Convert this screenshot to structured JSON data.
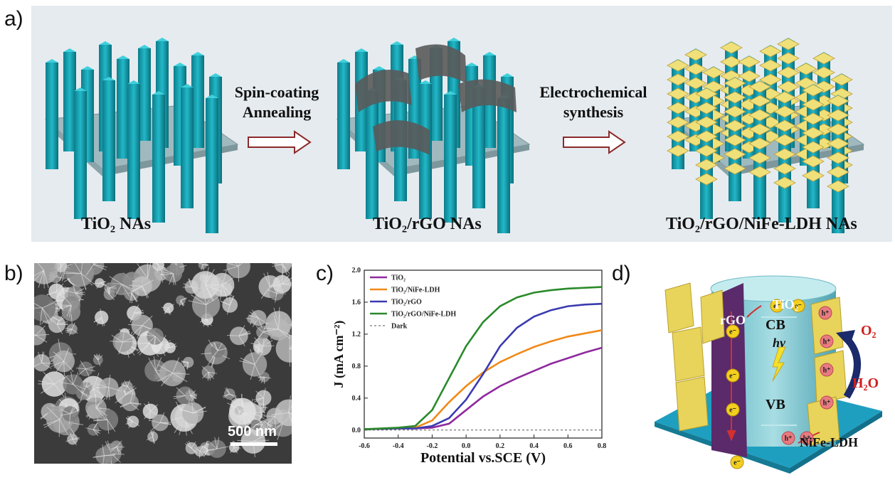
{
  "panel_labels": {
    "a": "a)",
    "b": "b)",
    "c": "c)",
    "d": "d)"
  },
  "panel_a": {
    "stage1_label": "TiO₂ NAs",
    "stage2_label": "TiO₂/rGO NAs",
    "stage3_label": "TiO₂/rGO/NiFe-LDH NAs",
    "step1_line1": "Spin-coating",
    "step1_line2": "Annealing",
    "step2_line1": "Electrochemical",
    "step2_line2": "synthesis",
    "colors": {
      "nanorod": "#1aa0b0",
      "substrate": "#9fb9bf",
      "rgo": "#5a5a5a",
      "ldh": "#f0e07a"
    }
  },
  "panel_b": {
    "scale_bar": "500 nm"
  },
  "panel_d": {
    "rgo": "rGO",
    "tio2": "TiO₂",
    "cb": "CB",
    "vb": "VB",
    "hv": "hv",
    "o2": "O₂",
    "h2o": "H₂O",
    "nife": "NiFe-LDH",
    "electron": "e⁻",
    "hole": "h⁺"
  },
  "chart_data": {
    "type": "line",
    "xlabel": "Potential vs.SCE (V)",
    "ylabel": "J (mA cm⁻²)",
    "xlim": [
      -0.6,
      0.8
    ],
    "ylim": [
      -0.1,
      2.0
    ],
    "xticks": [
      "-0.6",
      "-0.4",
      "-0.2",
      "0.0",
      "0.2",
      "0.4",
      "0.6",
      "0.8"
    ],
    "yticks": [
      "0.0",
      "0.4",
      "0.8",
      "1.2",
      "1.6",
      "2.0"
    ],
    "legend_position": "top-left",
    "series": [
      {
        "name": "TiO₂",
        "color": "#8e2a9e",
        "x": [
          -0.6,
          -0.4,
          -0.3,
          -0.2,
          -0.1,
          0.0,
          0.1,
          0.2,
          0.3,
          0.4,
          0.5,
          0.6,
          0.7,
          0.8
        ],
        "y": [
          0.01,
          0.02,
          0.02,
          0.03,
          0.08,
          0.25,
          0.42,
          0.55,
          0.65,
          0.74,
          0.83,
          0.9,
          0.97,
          1.03
        ]
      },
      {
        "name": "TiO₂/NiFe-LDH",
        "color": "#f08a1a",
        "x": [
          -0.6,
          -0.4,
          -0.3,
          -0.2,
          -0.1,
          0.0,
          0.1,
          0.2,
          0.3,
          0.4,
          0.5,
          0.6,
          0.7,
          0.8
        ],
        "y": [
          0.01,
          0.02,
          0.03,
          0.12,
          0.35,
          0.55,
          0.72,
          0.85,
          0.95,
          1.04,
          1.11,
          1.17,
          1.21,
          1.25
        ]
      },
      {
        "name": "TiO₂/rGO",
        "color": "#3a3ab0",
        "x": [
          -0.6,
          -0.4,
          -0.3,
          -0.2,
          -0.1,
          0.0,
          0.1,
          0.2,
          0.3,
          0.4,
          0.5,
          0.6,
          0.7,
          0.8
        ],
        "y": [
          0.01,
          0.02,
          0.02,
          0.05,
          0.15,
          0.38,
          0.7,
          1.05,
          1.28,
          1.42,
          1.5,
          1.55,
          1.57,
          1.58
        ]
      },
      {
        "name": "TiO₂/rGO/NiFe-LDH",
        "color": "#2a8a2a",
        "x": [
          -0.6,
          -0.4,
          -0.3,
          -0.2,
          -0.1,
          0.0,
          0.1,
          0.2,
          0.3,
          0.4,
          0.5,
          0.6,
          0.7,
          0.8
        ],
        "y": [
          0.01,
          0.03,
          0.05,
          0.25,
          0.65,
          1.05,
          1.35,
          1.55,
          1.66,
          1.72,
          1.75,
          1.77,
          1.78,
          1.79
        ]
      },
      {
        "name": "Dark",
        "color": "#555555",
        "dash": true,
        "x": [
          -0.6,
          0.8
        ],
        "y": [
          0.0,
          0.0
        ]
      }
    ]
  }
}
